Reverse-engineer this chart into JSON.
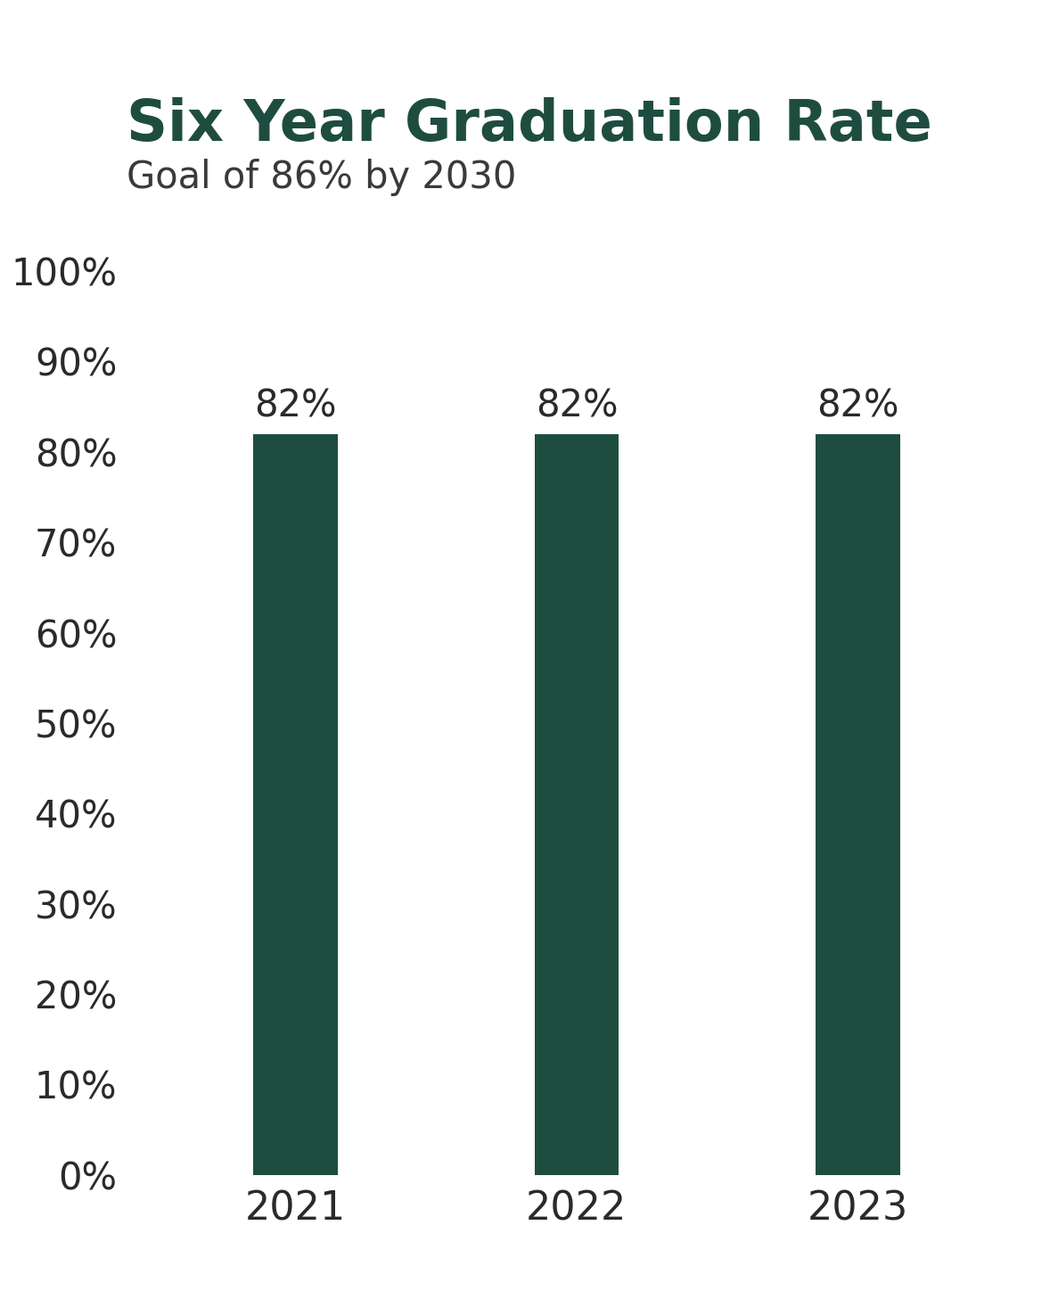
{
  "title": "Six Year Graduation Rate",
  "subtitle": "Goal of 86% by 2030",
  "categories": [
    "2021",
    "2022",
    "2023"
  ],
  "values": [
    82,
    82,
    82
  ],
  "bar_color": "#1e4d40",
  "title_color": "#1e4d40",
  "subtitle_color": "#3a3a3a",
  "tick_label_color": "#2a2a2a",
  "bar_label_color": "#2a2a2a",
  "ylim": [
    0,
    100
  ],
  "yticks": [
    0,
    10,
    20,
    30,
    40,
    50,
    60,
    70,
    80,
    90,
    100
  ],
  "title_fontsize": 46,
  "subtitle_fontsize": 30,
  "tick_fontsize": 30,
  "bar_label_fontsize": 30,
  "xlabel_fontsize": 32,
  "bar_width": 0.3,
  "background_color": "#ffffff"
}
